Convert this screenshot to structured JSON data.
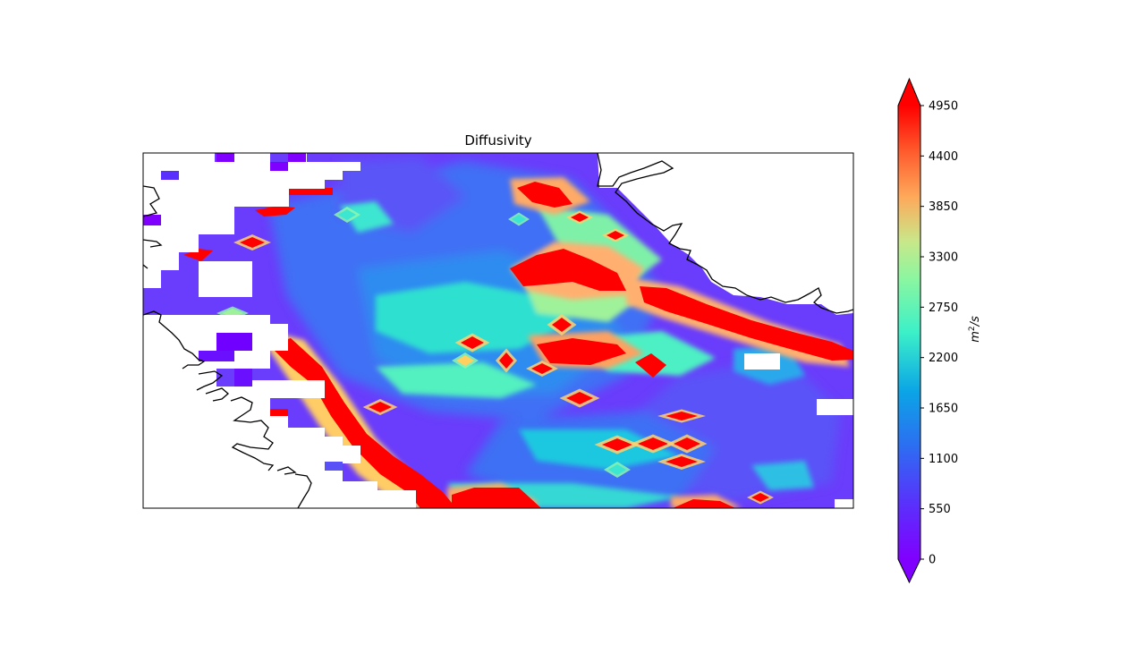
{
  "chart_data": {
    "type": "heatmap",
    "title": "Diffusivity",
    "colorbar": {
      "label_base": "m",
      "label_exp": "2",
      "label_rest": "/s",
      "vmin": 0,
      "vmax": 4950,
      "ticks": [
        0,
        550,
        1100,
        1650,
        2200,
        2750,
        3300,
        3850,
        4400,
        4950
      ],
      "extend": "both",
      "colormap": "rainbow"
    },
    "geography": {
      "coastline": true,
      "land_regions": [
        "upper-right",
        "left"
      ]
    },
    "features": [
      {
        "name": "western-boundary-band",
        "value": 4950
      },
      {
        "name": "northern-jet",
        "value": 4950
      },
      {
        "name": "eastern-jet",
        "value": 4950
      },
      {
        "name": "central-hotspots",
        "value": 4950
      },
      {
        "name": "background",
        "value": 550
      }
    ]
  }
}
